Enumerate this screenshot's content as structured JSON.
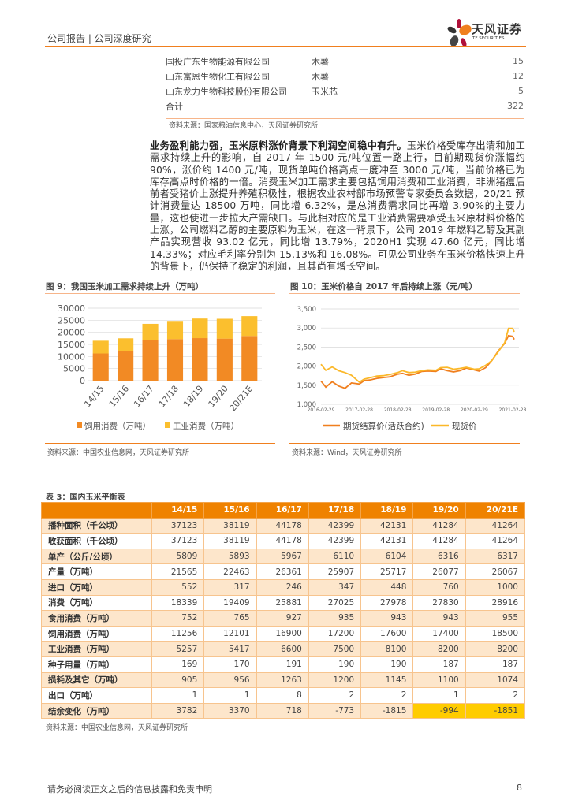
{
  "header": {
    "title": "公司报告 | 公司深度研究",
    "logo_name": "天风证券",
    "logo_sub": "TF SECURITIES"
  },
  "top_table": {
    "rows": [
      {
        "company": "国投广东生物能源有限公司",
        "material": "木薯",
        "value": "15"
      },
      {
        "company": "山东富恩生物化工有限公司",
        "material": "木薯",
        "value": "12"
      },
      {
        "company": "山东龙力生物科技股份有限公司",
        "material": "玉米芯",
        "value": "5"
      },
      {
        "company": "合计",
        "material": "",
        "value": "322"
      }
    ],
    "source": "资料来源：国家粮油信息中心，天风证券研究所"
  },
  "paragraph": {
    "lead": "业务盈利能力强，玉米原料涨价背景下利润空间稳中有升。",
    "body": "玉米价格受库存出清和加工需求持续上升的影响，自 2017 年 1500 元/吨位置一路上行，目前期现货价涨幅约 90%，涨价约 1400 元/吨，现货单吨价格高点一度冲至 3000 元/吨，当前价格已为库存高点时价格的一倍。消费玉米加工需求主要包括饲用消费和工业消费，非洲猪瘟后前者受猪价上涨提升养殖积极性，根据农业农村部市场预警专家委员会数据，20/21 预计消费量达 18500 万吨，同比增 6.32%，是总消费需求同比再增 3.90%的主要力量，这也使进一步拉大产需缺口。与此相对应的是工业消费需要承受玉米原材料价格的上涨，公司燃料乙醇的主要原料为玉米，在这一背景下，公司 2019 年燃料乙醇及其副产品实现营收 93.02 亿元，同比增 13.79%，2020H1 实现 47.60 亿元，同比增 14.33%；对应毛利率分别为 15.13%和 16.08%。可见公司业务在玉米价格快速上升的背景下，仍保持了稳定的利润，且其尚有增长空间。"
  },
  "chart_data": [
    {
      "type": "bar",
      "stacked": true,
      "title": "图 9：我国玉米加工需求持续上升（万吨）",
      "categories": [
        "14/15",
        "15/16",
        "16/17",
        "17/18",
        "18/19",
        "19/20",
        "20/21E"
      ],
      "series": [
        {
          "name": "饲用消费（万吨）",
          "values": [
            11256,
            12101,
            16900,
            17200,
            17600,
            17400,
            18500
          ],
          "color": "#f28a24"
        },
        {
          "name": "工业消费（万吨）",
          "values": [
            5257,
            5417,
            6600,
            7500,
            8100,
            8200,
            8200
          ],
          "color": "#fbbf2e"
        }
      ],
      "yticks": [
        "0",
        "5000",
        "10000",
        "15000",
        "20000",
        "25000",
        "30000"
      ],
      "ylim": [
        0,
        30000
      ],
      "grid": true,
      "legend": "bottom",
      "source": "资料来源：中国农业信息网，天风证券研究所"
    },
    {
      "type": "line",
      "title": "图 10：玉米价格自 2017 年后持续上涨（元/吨）",
      "xticks": [
        "2016-02-29",
        "2017-02-28",
        "2018-02-28",
        "2019-02-28",
        "2020-02-29",
        "2021-02-28"
      ],
      "yticks": [
        "1,000",
        "1,500",
        "2,000",
        "2,500",
        "3,000",
        "3,500"
      ],
      "ylim": [
        1000,
        3500
      ],
      "grid": true,
      "legend": "bottom",
      "series": [
        {
          "name": "期货结算价(活跃合约)",
          "color": "#f07f1e",
          "points": [
            [
              "2016-02-29",
              1610
            ],
            [
              "2016-04-15",
              1450
            ],
            [
              "2016-06-15",
              1590
            ],
            [
              "2016-08-15",
              1480
            ],
            [
              "2016-10-15",
              1420
            ],
            [
              "2016-12-15",
              1560
            ],
            [
              "2017-02-28",
              1530
            ],
            [
              "2017-04-15",
              1620
            ],
            [
              "2017-06-15",
              1640
            ],
            [
              "2017-08-15",
              1680
            ],
            [
              "2017-10-15",
              1700
            ],
            [
              "2017-12-15",
              1720
            ],
            [
              "2018-02-28",
              1790
            ],
            [
              "2018-04-15",
              1810
            ],
            [
              "2018-06-15",
              1760
            ],
            [
              "2018-08-15",
              1790
            ],
            [
              "2018-10-15",
              1860
            ],
            [
              "2018-12-15",
              1870
            ],
            [
              "2019-02-28",
              1860
            ],
            [
              "2019-04-15",
              1930
            ],
            [
              "2019-06-15",
              1880
            ],
            [
              "2019-08-15",
              1850
            ],
            [
              "2019-10-15",
              1880
            ],
            [
              "2019-12-15",
              1950
            ],
            [
              "2020-02-29",
              1900
            ],
            [
              "2020-04-15",
              1870
            ],
            [
              "2020-06-15",
              1960
            ],
            [
              "2020-08-15",
              2150
            ],
            [
              "2020-10-15",
              2400
            ],
            [
              "2020-12-15",
              2600
            ],
            [
              "2021-01-20",
              2800
            ],
            [
              "2021-02-28",
              2780
            ],
            [
              "2021-03-15",
              2700
            ]
          ]
        },
        {
          "name": "现货价",
          "color": "#fbb829",
          "points": [
            [
              "2016-02-29",
              2050
            ],
            [
              "2016-04-15",
              1890
            ],
            [
              "2016-06-15",
              1980
            ],
            [
              "2016-08-15",
              1880
            ],
            [
              "2016-10-15",
              1830
            ],
            [
              "2016-12-15",
              1760
            ],
            [
              "2017-02-28",
              1580
            ],
            [
              "2017-04-15",
              1660
            ],
            [
              "2017-06-15",
              1700
            ],
            [
              "2017-08-15",
              1740
            ],
            [
              "2017-10-15",
              1750
            ],
            [
              "2017-12-15",
              1780
            ],
            [
              "2018-02-28",
              1830
            ],
            [
              "2018-04-15",
              1880
            ],
            [
              "2018-06-15",
              1830
            ],
            [
              "2018-08-15",
              1840
            ],
            [
              "2018-10-15",
              1880
            ],
            [
              "2018-12-15",
              1900
            ],
            [
              "2019-02-28",
              1890
            ],
            [
              "2019-04-15",
              1960
            ],
            [
              "2019-06-15",
              1970
            ],
            [
              "2019-08-15",
              1920
            ],
            [
              "2019-10-15",
              1940
            ],
            [
              "2019-12-15",
              1970
            ],
            [
              "2020-02-29",
              1920
            ],
            [
              "2020-04-15",
              1930
            ],
            [
              "2020-06-15",
              2020
            ],
            [
              "2020-08-15",
              2150
            ],
            [
              "2020-10-15",
              2380
            ],
            [
              "2020-12-15",
              2620
            ],
            [
              "2021-01-20",
              2990
            ],
            [
              "2021-02-28",
              2990
            ],
            [
              "2021-03-15",
              2900
            ]
          ]
        }
      ],
      "source": "资料来源：Wind，天风证券研究所"
    }
  ],
  "balance_table": {
    "title": "表 3：国内玉米平衡表",
    "columns": [
      "14/15",
      "15/16",
      "16/17",
      "17/18",
      "18/19",
      "19/20",
      "20/21E"
    ],
    "rows": [
      {
        "label": "播种面积（千公顷）",
        "values": [
          "37123",
          "38119",
          "44178",
          "42399",
          "42131",
          "41284",
          "41264"
        ]
      },
      {
        "label": "收获面积（千公顷）",
        "values": [
          "37123",
          "38119",
          "44178",
          "42399",
          "42131",
          "41284",
          "41264"
        ]
      },
      {
        "label": "单产（公斤/公顷）",
        "values": [
          "5809",
          "5893",
          "5967",
          "6110",
          "6104",
          "6316",
          "6317"
        ]
      },
      {
        "label": "产量（万吨）",
        "values": [
          "21565",
          "22463",
          "26361",
          "25907",
          "25717",
          "26077",
          "26067"
        ]
      },
      {
        "label": "进口（万吨）",
        "values": [
          "552",
          "317",
          "246",
          "347",
          "448",
          "760",
          "1000"
        ]
      },
      {
        "label": "消费（万吨）",
        "values": [
          "18339",
          "19409",
          "25881",
          "27025",
          "27978",
          "27830",
          "28916"
        ]
      },
      {
        "label": "食用消费（万吨）",
        "values": [
          "752",
          "765",
          "927",
          "935",
          "943",
          "943",
          "955"
        ]
      },
      {
        "label": "饲用消费（万吨）",
        "values": [
          "11256",
          "12101",
          "16900",
          "17200",
          "17600",
          "17400",
          "18500"
        ]
      },
      {
        "label": "工业消费（万吨）",
        "values": [
          "5257",
          "5417",
          "6600",
          "7500",
          "8100",
          "8200",
          "8200"
        ]
      },
      {
        "label": "种子用量（万吨）",
        "values": [
          "169",
          "170",
          "191",
          "190",
          "190",
          "187",
          "187"
        ]
      },
      {
        "label": "损耗及其它（万吨）",
        "values": [
          "905",
          "956",
          "1263",
          "1200",
          "1145",
          "1100",
          "1074"
        ]
      },
      {
        "label": "出口（万吨）",
        "values": [
          "1",
          "1",
          "8",
          "2",
          "2",
          "1",
          "2"
        ]
      },
      {
        "label": "结余变化（万吨）",
        "values": [
          "3782",
          "3370",
          "718",
          "-773",
          "-1815",
          "-994",
          "-1851"
        ]
      }
    ],
    "highlight_color": "#ffcc00",
    "header_color": "#ef8200",
    "source": "资料来源：中国农业信息网，天风证券研究所"
  },
  "footer": {
    "disclaimer": "请务必阅读正文之后的信息披露和免责申明",
    "page": "8"
  }
}
